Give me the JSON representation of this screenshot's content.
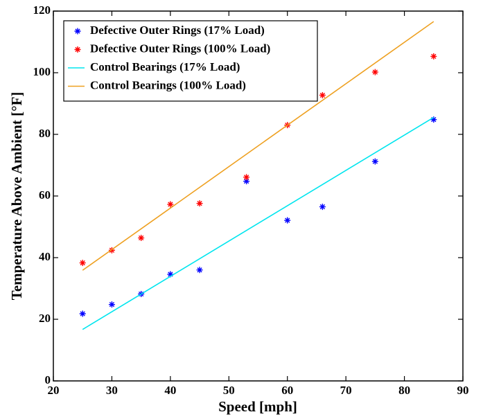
{
  "chart_data": {
    "type": "scatter",
    "x_label": "Speed [mph]",
    "y_label": "Temperature Above Ambient [°F]",
    "xlim": [
      20,
      90
    ],
    "xticks": [
      20,
      30,
      40,
      50,
      60,
      70,
      80,
      90
    ],
    "ylim": [
      0,
      120
    ],
    "yticks": [
      0,
      20,
      40,
      60,
      80,
      100,
      120
    ],
    "legend": "upper left",
    "series": [
      {
        "name": "Defective Outer Rings (17% Load)",
        "color": "#0000ff",
        "style": "marker",
        "x": [
          25,
          30,
          35,
          40,
          45,
          53,
          60,
          66,
          75,
          85
        ],
        "values": [
          21.8,
          24.8,
          28.2,
          34.6,
          36.0,
          64.8,
          52.1,
          56.5,
          71.2,
          84.8
        ]
      },
      {
        "name": "Defective Outer Rings (100% Load)",
        "color": "#ff0000",
        "style": "marker",
        "x": [
          25,
          30,
          35,
          40,
          45,
          53,
          60,
          66,
          75,
          85
        ],
        "values": [
          38.3,
          42.4,
          46.4,
          57.3,
          57.6,
          66.1,
          83.0,
          92.7,
          100.2,
          105.3
        ]
      },
      {
        "name": "Control Bearings (17% Load)",
        "color": "#00e5ee",
        "style": "line",
        "x": [
          25,
          85
        ],
        "values": [
          16.7,
          85.5
        ]
      },
      {
        "name": "Control Bearings (100% Load)",
        "color": "#eea020",
        "style": "line",
        "x": [
          25,
          85
        ],
        "values": [
          35.9,
          116.6
        ]
      }
    ]
  }
}
